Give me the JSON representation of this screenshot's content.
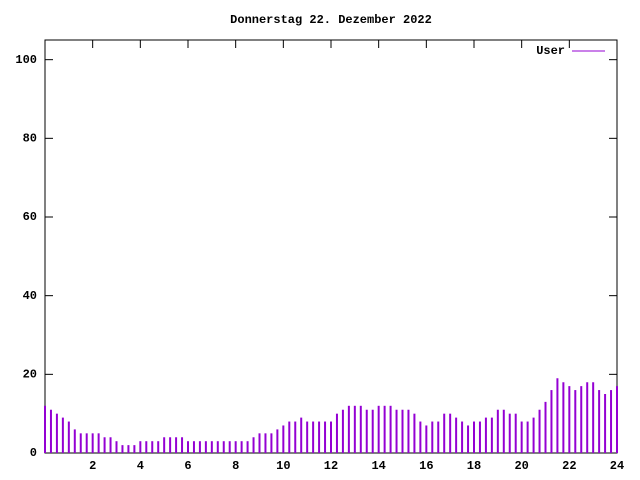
{
  "chart_data": {
    "type": "impulse",
    "title": "Donnerstag 22. Dezember 2022",
    "legend": "upper right",
    "series": [
      {
        "name": "User",
        "color": "#9400d3",
        "values": [
          12,
          11,
          10,
          9,
          8,
          6,
          5,
          5,
          5,
          5,
          4,
          4,
          3,
          2,
          2,
          2,
          3,
          3,
          3,
          3,
          4,
          4,
          4,
          4,
          3,
          3,
          3,
          3,
          3,
          3,
          3,
          3,
          3,
          3,
          3,
          4,
          5,
          5,
          5,
          6,
          7,
          8,
          8,
          9,
          8,
          8,
          8,
          8,
          8,
          10,
          11,
          12,
          12,
          12,
          11,
          11,
          12,
          12,
          12,
          11,
          11,
          11,
          10,
          8,
          7,
          8,
          8,
          10,
          10,
          9,
          8,
          7,
          8,
          8,
          9,
          9,
          11,
          11,
          10,
          10,
          8,
          8,
          9,
          11,
          13,
          16,
          19,
          18,
          17,
          16,
          17,
          18,
          18,
          16,
          15,
          16,
          17
        ]
      }
    ],
    "x": [
      0,
      0.25,
      0.5,
      0.75,
      1,
      1.25,
      1.5,
      1.75,
      2,
      2.25,
      2.5,
      2.75,
      3,
      3.25,
      3.5,
      3.75,
      4,
      4.25,
      4.5,
      4.75,
      5,
      5.25,
      5.5,
      5.75,
      6,
      6.25,
      6.5,
      6.75,
      7,
      7.25,
      7.5,
      7.75,
      8,
      8.25,
      8.5,
      8.75,
      9,
      9.25,
      9.5,
      9.75,
      10,
      10.25,
      10.5,
      10.75,
      11,
      11.25,
      11.5,
      11.75,
      12,
      12.25,
      12.5,
      12.75,
      13,
      13.25,
      13.5,
      13.75,
      14,
      14.25,
      14.5,
      14.75,
      15,
      15.25,
      15.5,
      15.75,
      16,
      16.25,
      16.5,
      16.75,
      17,
      17.25,
      17.5,
      17.75,
      18,
      18.25,
      18.5,
      18.75,
      19,
      19.25,
      19.5,
      19.75,
      20,
      20.25,
      20.5,
      20.75,
      21,
      21.25,
      21.5,
      21.75,
      22,
      22.25,
      22.5,
      22.75,
      23,
      23.25,
      23.5,
      23.75,
      24
    ],
    "xlim": [
      0,
      24
    ],
    "xticks": [
      2,
      4,
      6,
      8,
      10,
      12,
      14,
      16,
      18,
      20,
      22,
      24
    ],
    "ylim": [
      0,
      105
    ],
    "yticks": [
      0,
      20,
      40,
      60,
      80,
      100
    ]
  }
}
